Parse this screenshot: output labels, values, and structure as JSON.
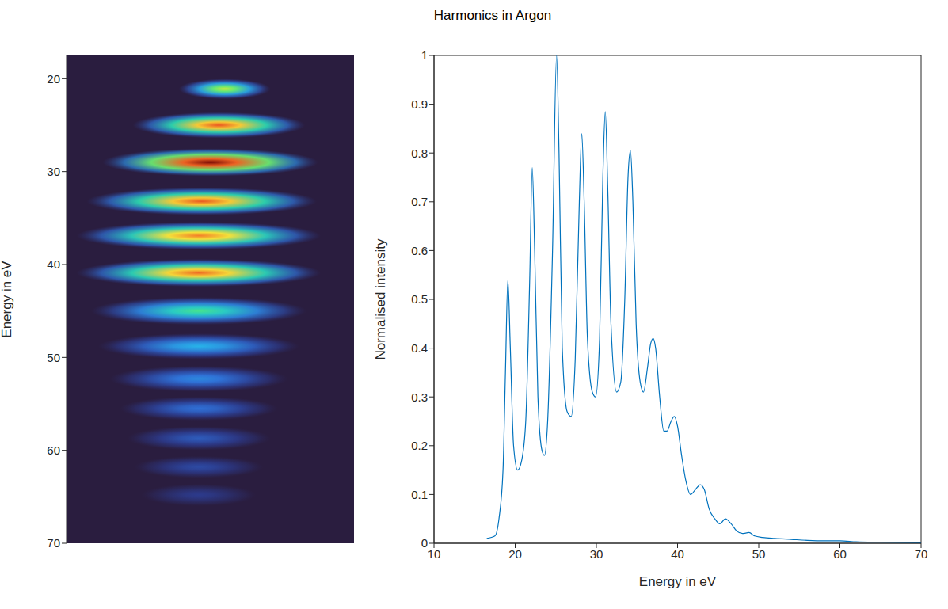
{
  "title": "Harmonics in Argon",
  "chart_data": [
    {
      "type": "image",
      "ylabel": "Energy in eV",
      "ylim": [
        70,
        17.5
      ],
      "yticks": [
        20,
        30,
        40,
        50,
        60,
        70
      ],
      "xlim": [
        0,
        1
      ],
      "tick_labels": "y",
      "clim": [
        0,
        1
      ],
      "blobs": {
        "x": [
          0.55,
          0.53,
          0.5,
          0.47,
          0.46,
          0.46,
          0.46,
          0.46,
          0.46,
          0.46,
          0.46,
          0.46,
          0.46
        ],
        "y": [
          21.1,
          25.0,
          29.0,
          33.2,
          36.9,
          40.9,
          45.0,
          48.8,
          52.3,
          55.5,
          58.7,
          61.8,
          64.8
        ],
        "intensity": [
          0.64,
          0.86,
          1.0,
          0.86,
          0.82,
          0.84,
          0.52,
          0.38,
          0.3,
          0.25,
          0.2,
          0.16,
          0.12
        ],
        "width": [
          0.32,
          0.6,
          0.75,
          0.8,
          0.85,
          0.85,
          0.75,
          0.7,
          0.62,
          0.55,
          0.5,
          0.45,
          0.4
        ],
        "height": [
          2.2,
          2.8,
          3.0,
          3.0,
          3.0,
          3.0,
          3.0,
          2.8,
          2.8,
          2.6,
          2.6,
          2.4,
          2.4
        ]
      }
    },
    {
      "type": "line",
      "xlabel": "Energy in eV",
      "ylabel": "Normalised intensity",
      "color": "#0072bd",
      "xlim": [
        10,
        70
      ],
      "ylim": [
        0,
        1
      ],
      "xticks": [
        10,
        20,
        30,
        40,
        50,
        60,
        70
      ],
      "yticks": [
        0,
        0.1,
        0.2,
        0.3,
        0.4,
        0.5,
        0.6,
        0.7,
        0.8,
        0.9,
        1
      ],
      "x": [
        16.5,
        17.5,
        18.0,
        18.5,
        18.8,
        19.1,
        19.4,
        19.8,
        20.3,
        20.8,
        21.3,
        21.8,
        22.1,
        22.4,
        22.8,
        23.3,
        23.6,
        24.0,
        24.6,
        25.1,
        25.4,
        25.8,
        26.4,
        26.9,
        27.4,
        27.9,
        28.2,
        28.5,
        28.9,
        29.5,
        29.9,
        30.4,
        30.8,
        31.1,
        31.4,
        31.8,
        32.5,
        33.0,
        33.5,
        33.9,
        34.2,
        34.5,
        34.9,
        35.4,
        35.8,
        36.3,
        36.7,
        37.0,
        37.3,
        37.8,
        38.3,
        38.7,
        39.2,
        39.6,
        40.0,
        40.5,
        41.0,
        41.6,
        42.2,
        42.8,
        43.3,
        43.9,
        44.6,
        45.2,
        45.9,
        46.6,
        47.3,
        48.0,
        48.8,
        49.5,
        50.5,
        52,
        54,
        56,
        58,
        60,
        62,
        65,
        70
      ],
      "values": [
        0.01,
        0.015,
        0.05,
        0.15,
        0.35,
        0.54,
        0.4,
        0.2,
        0.15,
        0.17,
        0.25,
        0.55,
        0.77,
        0.6,
        0.3,
        0.19,
        0.18,
        0.25,
        0.6,
        1.0,
        0.8,
        0.4,
        0.27,
        0.26,
        0.38,
        0.7,
        0.84,
        0.7,
        0.42,
        0.31,
        0.3,
        0.42,
        0.75,
        0.885,
        0.73,
        0.45,
        0.31,
        0.33,
        0.5,
        0.75,
        0.805,
        0.7,
        0.45,
        0.33,
        0.31,
        0.36,
        0.41,
        0.42,
        0.4,
        0.3,
        0.23,
        0.23,
        0.25,
        0.26,
        0.24,
        0.18,
        0.13,
        0.1,
        0.11,
        0.12,
        0.11,
        0.07,
        0.05,
        0.04,
        0.05,
        0.04,
        0.025,
        0.02,
        0.022,
        0.015,
        0.012,
        0.01,
        0.008,
        0.006,
        0.005,
        0.005,
        0.003,
        0.002,
        0.001
      ]
    }
  ]
}
